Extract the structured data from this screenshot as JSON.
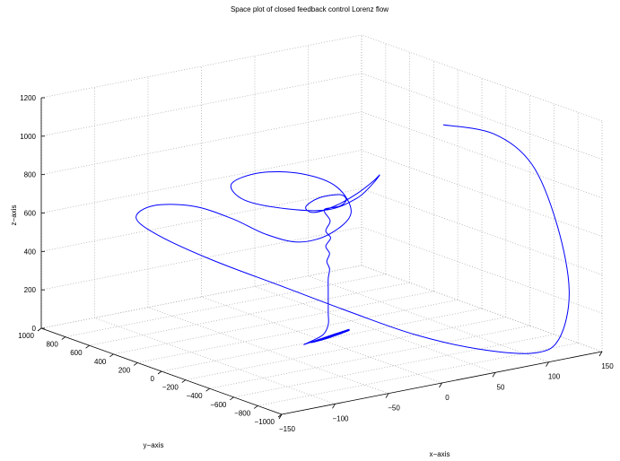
{
  "chart_data": {
    "type": "line3d",
    "title": "Space plot of closed feedback control Lorenz flow",
    "xlabel": "x−axis",
    "ylabel": "y−axis",
    "zlabel": "z−axis",
    "xlim": [
      -150,
      150
    ],
    "ylim": [
      -1000,
      1000
    ],
    "zlim": [
      0,
      1200
    ],
    "x_ticks": [
      "−150",
      "−100",
      "−50",
      "0",
      "50",
      "100",
      "150"
    ],
    "y_ticks": [
      "−1000",
      "−800",
      "−600",
      "−400",
      "−200",
      "0",
      "200",
      "400",
      "600",
      "800",
      "1000"
    ],
    "z_ticks": [
      "0",
      "200",
      "400",
      "600",
      "800",
      "1000",
      "1200"
    ],
    "grid": true,
    "series": [
      {
        "color": "#0000ff",
        "points": [
          [
            80,
            -300,
            1100
          ],
          [
            105,
            -500,
            1070
          ],
          [
            125,
            -640,
            920
          ],
          [
            135,
            -760,
            620
          ],
          [
            135,
            -860,
            300
          ],
          [
            120,
            -910,
            80
          ],
          [
            100,
            -880,
            20
          ],
          [
            60,
            -770,
            60
          ],
          [
            20,
            -600,
            140
          ],
          [
            -20,
            -420,
            260
          ],
          [
            -60,
            -200,
            390
          ],
          [
            -100,
            20,
            520
          ],
          [
            -130,
            200,
            640
          ],
          [
            -140,
            300,
            720
          ],
          [
            -125,
            290,
            770
          ],
          [
            -95,
            220,
            750
          ],
          [
            -70,
            120,
            680
          ],
          [
            -50,
            20,
            600
          ],
          [
            -30,
            -80,
            560
          ],
          [
            -10,
            -160,
            600
          ],
          [
            5,
            -200,
            700
          ],
          [
            -5,
            -170,
            840
          ],
          [
            -30,
            -100,
            920
          ],
          [
            -60,
            -20,
            940
          ],
          [
            -80,
            40,
            890
          ],
          [
            -70,
            20,
            800
          ],
          [
            -40,
            -60,
            740
          ],
          [
            -10,
            -140,
            720
          ],
          [
            10,
            -200,
            770
          ],
          [
            20,
            -240,
            840
          ],
          [
            25,
            -260,
            890
          ],
          [
            20,
            -250,
            860
          ],
          [
            10,
            -210,
            800
          ],
          [
            -5,
            -160,
            740
          ],
          [
            -20,
            -110,
            710
          ],
          [
            -25,
            -90,
            740
          ],
          [
            -15,
            -110,
            780
          ],
          [
            0,
            -150,
            790
          ],
          [
            5,
            -160,
            760
          ],
          [
            0,
            -150,
            730
          ],
          [
            -10,
            -120,
            720
          ],
          [
            -10,
            -115,
            700
          ],
          [
            -5,
            -115,
            650
          ],
          [
            -8,
            -105,
            600
          ],
          [
            -4,
            -110,
            560
          ],
          [
            -8,
            -105,
            520
          ],
          [
            -5,
            -110,
            480
          ],
          [
            -7,
            -105,
            440
          ],
          [
            -5,
            -110,
            400
          ],
          [
            -6,
            -108,
            350
          ],
          [
            -6,
            -108,
            290
          ],
          [
            -6,
            -108,
            230
          ],
          [
            -6,
            -108,
            170
          ],
          [
            -6,
            -108,
            110
          ],
          [
            -10,
            -100,
            60
          ],
          [
            -20,
            -80,
            30
          ],
          [
            -25,
            -75,
            20
          ],
          [
            -15,
            -90,
            35
          ],
          [
            0,
            -120,
            60
          ],
          [
            10,
            -140,
            75
          ],
          [
            -5,
            -120,
            50
          ],
          [
            -20,
            -90,
            28
          ],
          [
            -8,
            -110,
            40
          ],
          [
            10,
            -140,
            70
          ],
          [
            -2,
            -118,
            55
          ],
          [
            -12,
            -100,
            35
          ],
          [
            5,
            -128,
            58
          ]
        ]
      }
    ]
  }
}
